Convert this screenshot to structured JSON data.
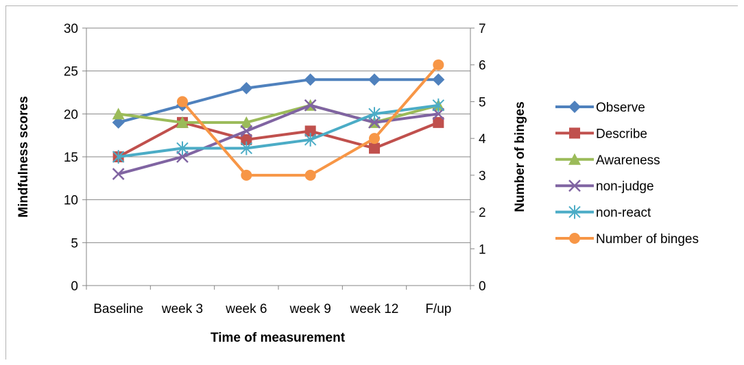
{
  "chart_data": {
    "type": "line",
    "title": "",
    "categories": [
      "Baseline",
      "week 3",
      "week 6",
      "week 9",
      "week 12",
      "F/up"
    ],
    "xlabel": "Time of measurement",
    "ylabel": "Mindfulness scores",
    "y2label": "Number of binges",
    "ylim": [
      0,
      30
    ],
    "y2lim": [
      0,
      7
    ],
    "yticks": [
      "0",
      "5",
      "10",
      "15",
      "20",
      "25",
      "30"
    ],
    "y2ticks": [
      "0",
      "1",
      "2",
      "3",
      "4",
      "5",
      "6",
      "7"
    ],
    "grid": true,
    "legend_position": "right",
    "series": [
      {
        "name": "Observe",
        "axis": "left",
        "color": "#4F81BD",
        "marker": "diamond",
        "values": [
          19,
          21,
          23,
          24,
          24,
          24
        ]
      },
      {
        "name": "Describe",
        "axis": "left",
        "color": "#C0504D",
        "marker": "square",
        "values": [
          15,
          19,
          17,
          18,
          16,
          19
        ]
      },
      {
        "name": "Awareness",
        "axis": "left",
        "color": "#9BBB59",
        "marker": "triangle",
        "values": [
          20,
          19,
          19,
          21,
          19,
          21
        ]
      },
      {
        "name": "non-judge",
        "axis": "left",
        "color": "#8064A2",
        "marker": "x",
        "values": [
          13,
          15,
          18,
          21,
          19,
          20
        ]
      },
      {
        "name": "non-react",
        "axis": "left",
        "color": "#4BACC6",
        "marker": "star",
        "values": [
          15,
          16,
          16,
          17,
          20,
          21
        ]
      },
      {
        "name": "Number of binges",
        "axis": "right",
        "color": "#F79646",
        "marker": "circle",
        "values": [
          null,
          5,
          3,
          3,
          4,
          6
        ]
      }
    ]
  }
}
